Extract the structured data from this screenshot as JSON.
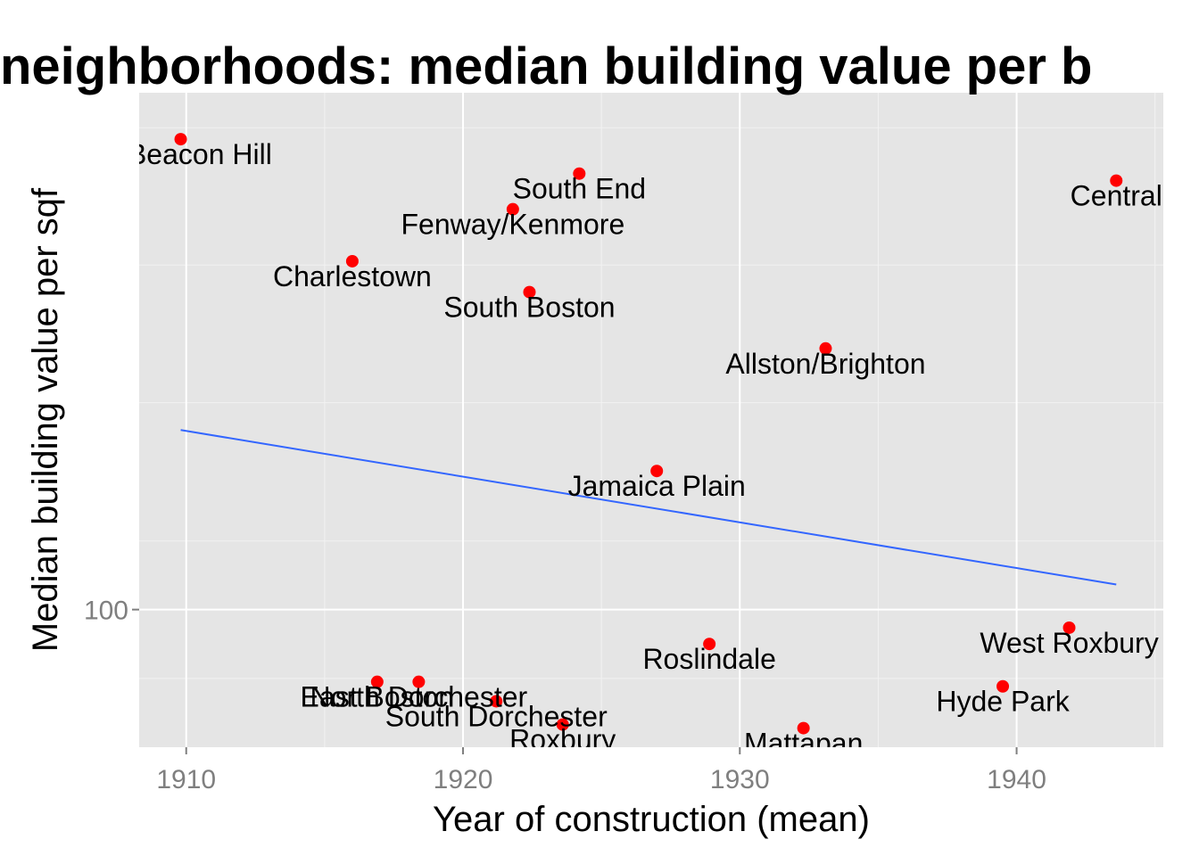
{
  "chart_data": {
    "type": "scatter",
    "title": "neighborhoods: median building value per b",
    "xlabel": "Year of construction (mean)",
    "ylabel": "Median building value per sqf",
    "xlim": [
      1908.3,
      1945.3
    ],
    "ylim": [
      87.8,
      163
    ],
    "y_scale": "log",
    "x_ticks": [
      1910,
      1920,
      1930,
      1940
    ],
    "x_tick_labels": [
      "1910",
      "1920",
      "1930",
      "1940"
    ],
    "y_ticks": [
      100
    ],
    "y_tick_labels": [
      "100"
    ],
    "grid": true,
    "point_color": "#ff0000",
    "trend_color": "#3366ff",
    "panel_color": "#e5e5e5",
    "points": [
      {
        "label": "ay/Beacon Hill",
        "x": 1909.8,
        "y": 156
      },
      {
        "label": "South End",
        "x": 1924.2,
        "y": 151
      },
      {
        "label": "Central",
        "x": 1943.6,
        "y": 150
      },
      {
        "label": "Fenway/Kenmore",
        "x": 1921.8,
        "y": 146
      },
      {
        "label": "Charlestown",
        "x": 1916.0,
        "y": 139
      },
      {
        "label": "South Boston",
        "x": 1922.4,
        "y": 135
      },
      {
        "label": "Allston/Brighton",
        "x": 1933.1,
        "y": 128
      },
      {
        "label": "Jamaica Plain",
        "x": 1927.0,
        "y": 114
      },
      {
        "label": "West Roxbury",
        "x": 1941.9,
        "y": 98.3
      },
      {
        "label": "Roslindale",
        "x": 1928.9,
        "y": 96.8
      },
      {
        "label": "Hyde Park",
        "x": 1939.5,
        "y": 93.0
      },
      {
        "label": "North Dorchester",
        "x": 1918.4,
        "y": 93.4
      },
      {
        "label": "East Boston",
        "x": 1916.9,
        "y": 93.4
      },
      {
        "label": "South Dorchester",
        "x": 1921.2,
        "y": 91.7
      },
      {
        "label": "Roxbury",
        "x": 1923.6,
        "y": 89.7
      },
      {
        "label": "Mattapan",
        "x": 1932.3,
        "y": 89.4
      }
    ],
    "trend": {
      "x": [
        1909.8,
        1943.6
      ],
      "y": [
        118.5,
        102.4
      ]
    }
  }
}
